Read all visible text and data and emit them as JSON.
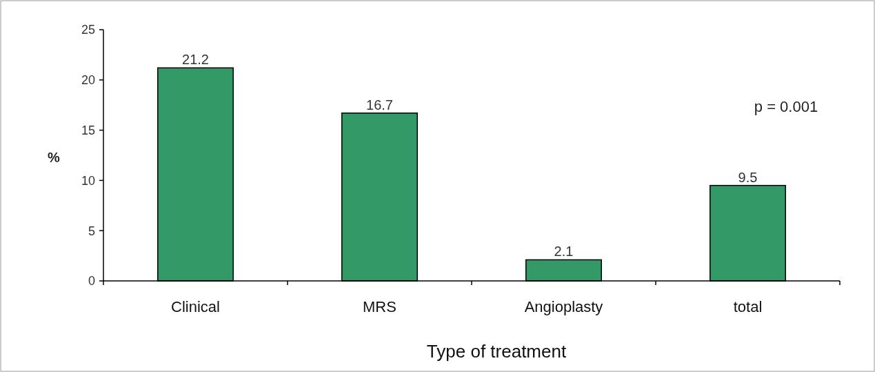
{
  "chart_data": {
    "type": "bar",
    "categories": [
      "Clinical",
      "MRS",
      "Angioplasty",
      "total"
    ],
    "values": [
      21.2,
      16.7,
      2.1,
      9.5
    ],
    "color": "#339966",
    "xlabel": "Type of treatment",
    "ylabel": "%",
    "ylim": [
      0,
      25
    ],
    "yticks": [
      0,
      5,
      10,
      15,
      20,
      25
    ],
    "data_labels": true,
    "grid": false,
    "annotations": [
      "p = 0.001"
    ]
  }
}
